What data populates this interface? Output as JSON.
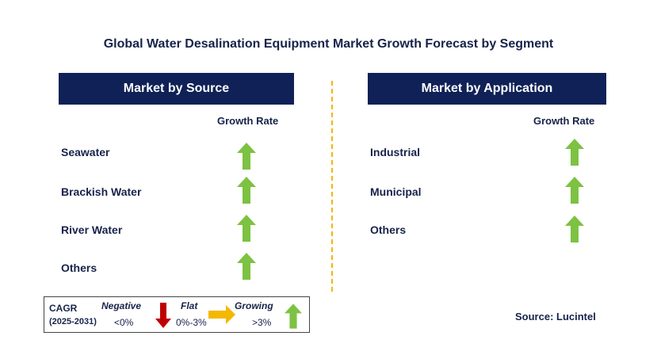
{
  "title": "Global Water Desalination Equipment Market Growth Forecast by Segment",
  "left": {
    "header": "Market by Source",
    "column_label": "Growth Rate",
    "rows": [
      {
        "label": "Seawater",
        "trend": "growing"
      },
      {
        "label": "Brackish Water",
        "trend": "growing"
      },
      {
        "label": "River Water",
        "trend": "growing"
      },
      {
        "label": "Others",
        "trend": "growing"
      }
    ]
  },
  "right": {
    "header": "Market by Application",
    "column_label": "Growth Rate",
    "rows": [
      {
        "label": "Industrial",
        "trend": "growing"
      },
      {
        "label": "Municipal",
        "trend": "growing"
      },
      {
        "label": "Others",
        "trend": "growing"
      }
    ]
  },
  "legend": {
    "cagr_label": "CAGR",
    "period": "(2025-2031)",
    "negative_label": "Negative",
    "negative_range": "<0%",
    "flat_label": "Flat",
    "flat_range": "0%-3%",
    "growing_label": "Growing",
    "growing_range": ">3%"
  },
  "source": "Source: Lucintel",
  "colors": {
    "header_bg": "#0f2157",
    "growing_arrow": "#7dc242",
    "negative_arrow": "#c00000",
    "flat_arrow": "#f5b800",
    "divider": "#f2b705"
  }
}
